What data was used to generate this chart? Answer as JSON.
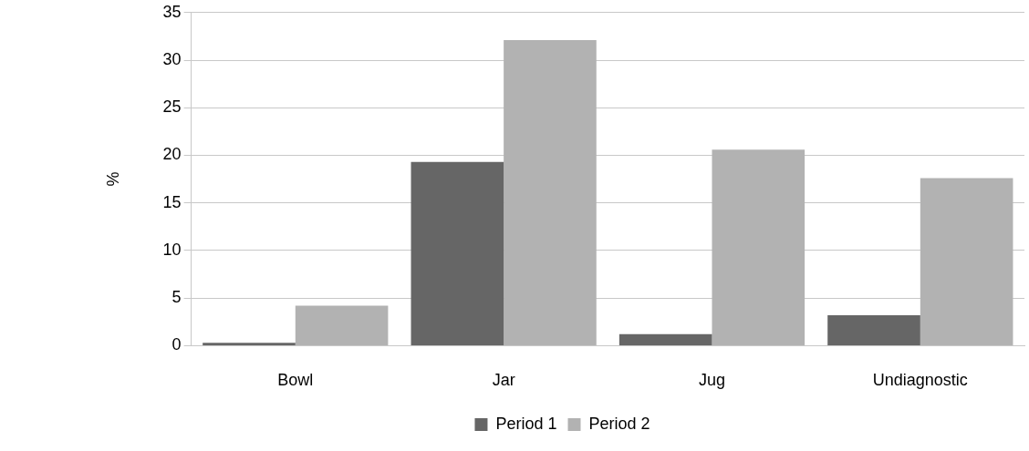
{
  "chart_data": {
    "type": "bar",
    "ylabel": "%",
    "categories": [
      "Bowl",
      "Jar",
      "Jug",
      "Undiagnostic"
    ],
    "series": [
      {
        "name": "Period 1",
        "color": "#666666",
        "values": [
          0.3,
          19.3,
          1.2,
          3.2
        ]
      },
      {
        "name": "Period 2",
        "color": "#b2b2b2",
        "values": [
          4.2,
          32.1,
          20.6,
          17.6
        ]
      }
    ],
    "ylim": [
      0,
      35
    ],
    "yticks": [
      0,
      5,
      10,
      15,
      20,
      25,
      30,
      35
    ],
    "grid": "y",
    "legend": "bottom"
  }
}
